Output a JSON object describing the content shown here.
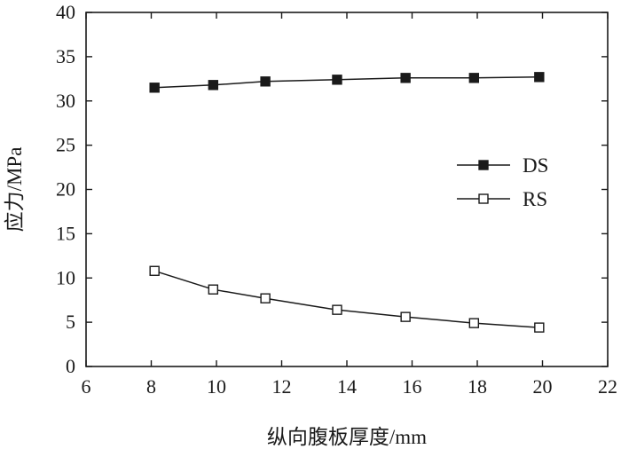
{
  "chart_data": {
    "type": "line",
    "title": "",
    "xlabel": "纵向腹板厚度/mm",
    "ylabel": "应力/MPa",
    "xlim": [
      6,
      22
    ],
    "ylim": [
      0,
      40
    ],
    "x_ticks": [
      6,
      8,
      10,
      12,
      14,
      16,
      18,
      20,
      22
    ],
    "y_ticks": [
      0,
      5,
      10,
      15,
      20,
      25,
      30,
      35,
      40
    ],
    "grid": false,
    "legend_position": "right",
    "series": [
      {
        "name": "DS",
        "marker": "filled-square",
        "x": [
          8.1,
          9.9,
          11.5,
          13.7,
          15.8,
          17.9,
          19.9
        ],
        "y": [
          31.5,
          31.8,
          32.2,
          32.4,
          32.6,
          32.6,
          32.7
        ]
      },
      {
        "name": "RS",
        "marker": "open-square",
        "x": [
          8.1,
          9.9,
          11.5,
          13.7,
          15.8,
          17.9,
          19.9
        ],
        "y": [
          10.8,
          8.7,
          7.7,
          6.4,
          5.6,
          4.9,
          4.4
        ]
      }
    ]
  }
}
